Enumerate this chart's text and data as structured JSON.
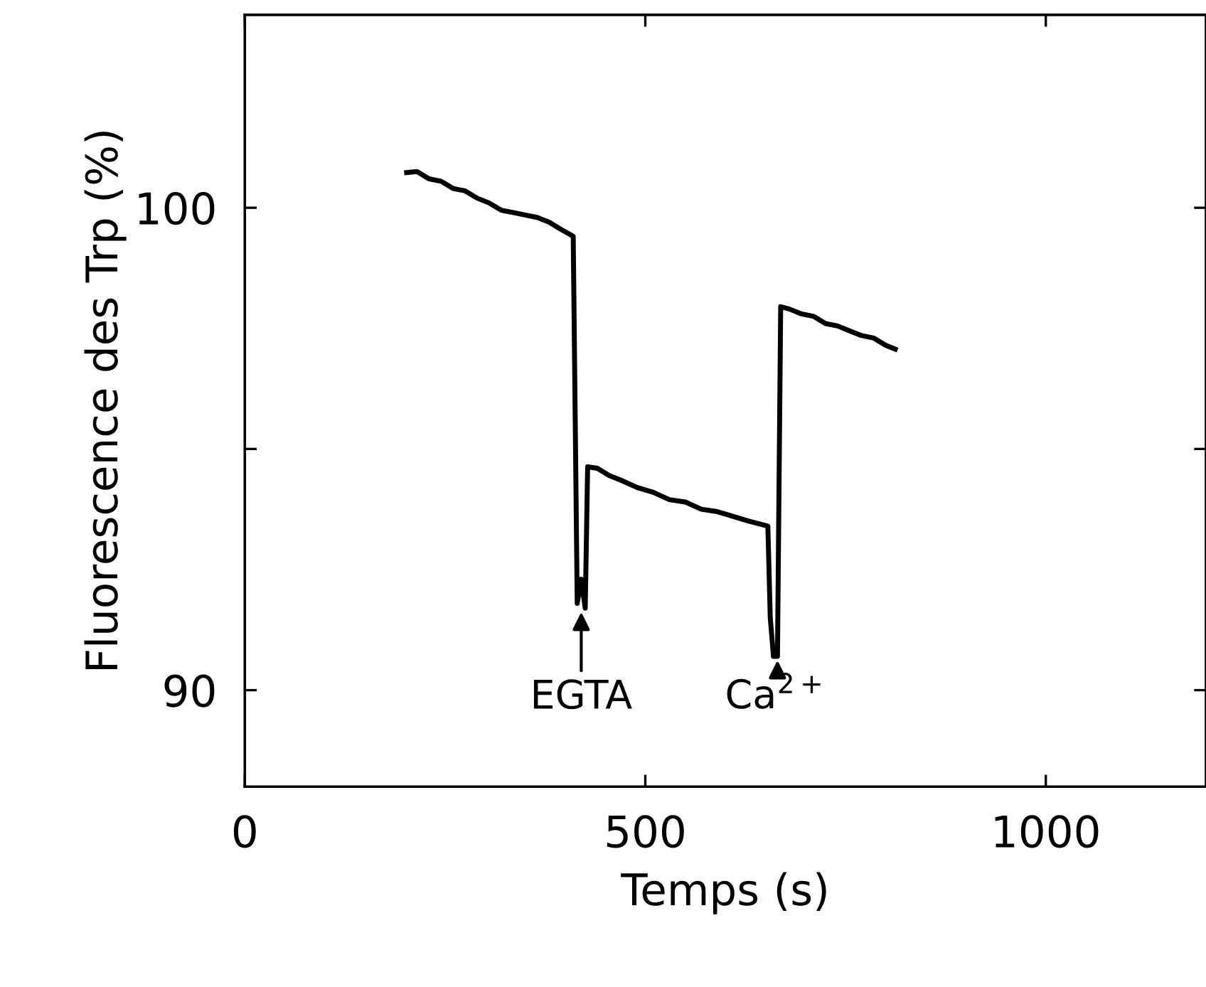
{
  "chart_data": {
    "type": "line",
    "xlabel": "Temps (s)",
    "ylabel": "Fluorescence des Trp (%)",
    "xlim": [
      0,
      1200
    ],
    "ylim": [
      88,
      104
    ],
    "xticks": [
      0,
      500,
      1000
    ],
    "yticks": [
      90,
      {
        "value": 95,
        "label": null
      },
      100
    ],
    "grid": false,
    "marker": "none",
    "line_style": "solid",
    "series": [
      {
        "color": "#000000",
        "x": [
          202,
          215,
          230,
          245,
          260,
          275,
          290,
          305,
          320,
          335,
          350,
          365,
          380,
          395,
          410,
          415,
          420,
          425,
          428,
          440,
          455,
          470,
          490,
          510,
          530,
          550,
          570,
          590,
          610,
          630,
          653,
          656,
          660,
          665,
          669,
          680,
          695,
          710,
          725,
          740,
          755,
          770,
          785,
          800,
          812
        ],
        "values": [
          100.73,
          100.75,
          100.6,
          100.55,
          100.4,
          100.35,
          100.2,
          100.1,
          99.95,
          99.9,
          99.85,
          99.8,
          99.7,
          99.55,
          99.41,
          91.8,
          92.3,
          91.7,
          94.63,
          94.6,
          94.45,
          94.35,
          94.2,
          94.1,
          93.95,
          93.9,
          93.75,
          93.7,
          93.6,
          93.5,
          93.4,
          91.5,
          90.7,
          90.7,
          97.95,
          97.9,
          97.8,
          97.75,
          97.6,
          97.55,
          97.45,
          97.35,
          97.3,
          97.15,
          97.07
        ]
      }
    ],
    "annotations": [
      {
        "text": "EGTA",
        "x": 420,
        "y": 91.7
      },
      {
        "text": "Ca$^{2+}$",
        "x": 665,
        "y": 90.7
      }
    ]
  }
}
